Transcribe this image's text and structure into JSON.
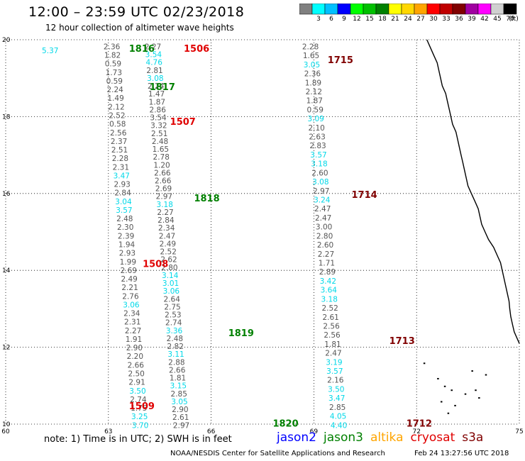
{
  "header": {
    "title": "12:00 – 23:59 UTC 02/23/2018",
    "subtitle": "12 hour collection of altimeter wave heights"
  },
  "legend": {
    "unit_label": "(ft)",
    "bins": [
      {
        "label": "",
        "color": "#808080"
      },
      {
        "label": "3",
        "color": "#00ffff"
      },
      {
        "label": "6",
        "color": "#00c0ff"
      },
      {
        "label": "9",
        "color": "#0000ff"
      },
      {
        "label": "12",
        "color": "#00ff00"
      },
      {
        "label": "15",
        "color": "#00c000"
      },
      {
        "label": "18",
        "color": "#008000"
      },
      {
        "label": "21",
        "color": "#ffff00"
      },
      {
        "label": "24",
        "color": "#ffd700"
      },
      {
        "label": "27",
        "color": "#ffa500"
      },
      {
        "label": "30",
        "color": "#ff0000"
      },
      {
        "label": "33",
        "color": "#c00000"
      },
      {
        "label": "36",
        "color": "#800000"
      },
      {
        "label": "39",
        "color": "#a000a0"
      },
      {
        "label": "42",
        "color": "#ff00ff"
      },
      {
        "label": "45",
        "color": "#d0d0d0"
      },
      {
        "label": "70",
        "color": "#000000"
      }
    ]
  },
  "map": {
    "lon_range": [
      60,
      75
    ],
    "lat_range": [
      10,
      20
    ],
    "lon_ticks": [
      "60",
      "63",
      "66",
      "69",
      "72",
      "75"
    ],
    "lat_ticks": [
      "10",
      "12",
      "14",
      "16",
      "18",
      "20"
    ],
    "grid": "dotted",
    "colors": {
      "gray": "#555555",
      "cyan": "#00d8e8",
      "green": "#008000",
      "red": "#e00000",
      "darkred": "#800000"
    },
    "tracks": [
      {
        "color": "gray",
        "lon": 63.1,
        "lat_top": 19.9,
        "lat_bottom": 10.05,
        "values": [
          "2.36",
          "1.82",
          "0.59",
          "1.73",
          "0.59",
          "2.24",
          "1.49",
          "2.12",
          "2.52",
          "0.58",
          "2.56",
          "2.37",
          "2.51",
          "2.28",
          "2.31",
          "3.47",
          "2.93",
          "2.84",
          "3.04",
          "3.57",
          "2.48",
          "2.30",
          "2.39",
          "1.94",
          "2.93",
          "1.99",
          "2.69",
          "2.49",
          "2.21",
          "2.76",
          "3.06",
          "2.34",
          "2.31",
          "2.27",
          "1.91",
          "2.90",
          "2.20",
          "2.66",
          "2.50",
          "2.91",
          "3.50",
          "2.74",
          "1.75",
          "3.25",
          "3.70"
        ],
        "cyan_idx": [
          15,
          18,
          19,
          30,
          40,
          43,
          44
        ]
      },
      {
        "color": "gray",
        "lon": 61.3,
        "lat_top": 19.8,
        "lat_bottom": 19.6,
        "values": [
          "5.37"
        ],
        "cyan_idx": [
          0
        ]
      },
      {
        "color": "gray",
        "lon": 64.3,
        "lat_top": 19.9,
        "lat_bottom": 10.05,
        "values": [
          "2.27",
          "3.54",
          "4.76",
          "2.81",
          "3.08",
          "2.24",
          "1.47",
          "1.87",
          "2.86",
          "3.54",
          "3.32",
          "2.51",
          "2.48",
          "1.65",
          "2.78",
          "1.20",
          "2.66",
          "2.66",
          "2.69",
          "2.97",
          "3.18",
          "2.27",
          "2.84",
          "2.34",
          "2.47",
          "2.49",
          "2.52",
          "2.62",
          "2.80",
          "3.14",
          "3.01",
          "3.06",
          "2.64",
          "2.75",
          "2.53",
          "2.74",
          "3.36",
          "2.48",
          "2.82",
          "3.11",
          "2.88",
          "2.66",
          "1.81",
          "3.15",
          "2.85",
          "3.05",
          "2.90",
          "2.61",
          "2.97"
        ],
        "cyan_idx": [
          1,
          2,
          4,
          20,
          29,
          30,
          31,
          36,
          39,
          43,
          45
        ]
      },
      {
        "color": "gray",
        "lon": 68.9,
        "lat_top": 19.9,
        "lat_bottom": 10.05,
        "values": [
          "2.28",
          "1.65",
          "3.05",
          "2.36",
          "1.89",
          "2.12",
          "1.87",
          "0.59",
          "3.09",
          "2.10",
          "2.63",
          "2.83",
          "3.57",
          "3.18",
          "2.60",
          "3.08",
          "2.97",
          "3.24",
          "2.47",
          "2.47",
          "3.00",
          "2.80",
          "2.60",
          "2.27",
          "1.71",
          "2.89",
          "3.42",
          "3.64",
          "3.18",
          "2.52",
          "2.61",
          "2.56",
          "2.56",
          "1.81",
          "2.47",
          "3.19",
          "3.57",
          "2.16",
          "3.50",
          "3.47",
          "2.85",
          "4.05",
          "4.40"
        ],
        "cyan_idx": [
          2,
          8,
          12,
          13,
          15,
          17,
          26,
          27,
          28,
          35,
          36,
          38,
          39,
          41,
          42
        ]
      }
    ],
    "pass_labels": [
      {
        "text": "1816",
        "color": "green",
        "lon": 63.6,
        "lat": 19.8
      },
      {
        "text": "1506",
        "color": "red",
        "lon": 65.2,
        "lat": 19.8
      },
      {
        "text": "1817",
        "color": "green",
        "lon": 64.2,
        "lat": 18.8
      },
      {
        "text": "1507",
        "color": "red",
        "lon": 64.8,
        "lat": 17.9
      },
      {
        "text": "1715",
        "color": "darkred",
        "lon": 69.4,
        "lat": 19.5
      },
      {
        "text": "1818",
        "color": "green",
        "lon": 65.5,
        "lat": 15.9
      },
      {
        "text": "1714",
        "color": "darkred",
        "lon": 70.1,
        "lat": 16.0
      },
      {
        "text": "1508",
        "color": "red",
        "lon": 64.0,
        "lat": 14.2
      },
      {
        "text": "1819",
        "color": "green",
        "lon": 66.5,
        "lat": 12.4
      },
      {
        "text": "1713",
        "color": "darkred",
        "lon": 71.2,
        "lat": 12.2
      },
      {
        "text": "1509",
        "color": "red",
        "lon": 63.6,
        "lat": 10.5
      },
      {
        "text": "1820",
        "color": "green",
        "lon": 67.8,
        "lat": 10.05
      },
      {
        "text": "1712",
        "color": "darkred",
        "lon": 71.7,
        "lat": 10.05
      }
    ]
  },
  "notes": "note: 1) Time is in UTC; 2) SWH is in feet",
  "satellites": [
    {
      "name": "jason2",
      "color": "#0000ff"
    },
    {
      "name": "jason3",
      "color": "#008000"
    },
    {
      "name": "altika",
      "color": "#ffa500"
    },
    {
      "name": "cryosat",
      "color": "#e00000"
    },
    {
      "name": "s3a",
      "color": "#800000"
    }
  ],
  "footer": {
    "credit": "NOAA/NESDIS Center for Satellite Applications and Research",
    "timestamp": "Feb 24 13:27:56 UTC 2018"
  }
}
